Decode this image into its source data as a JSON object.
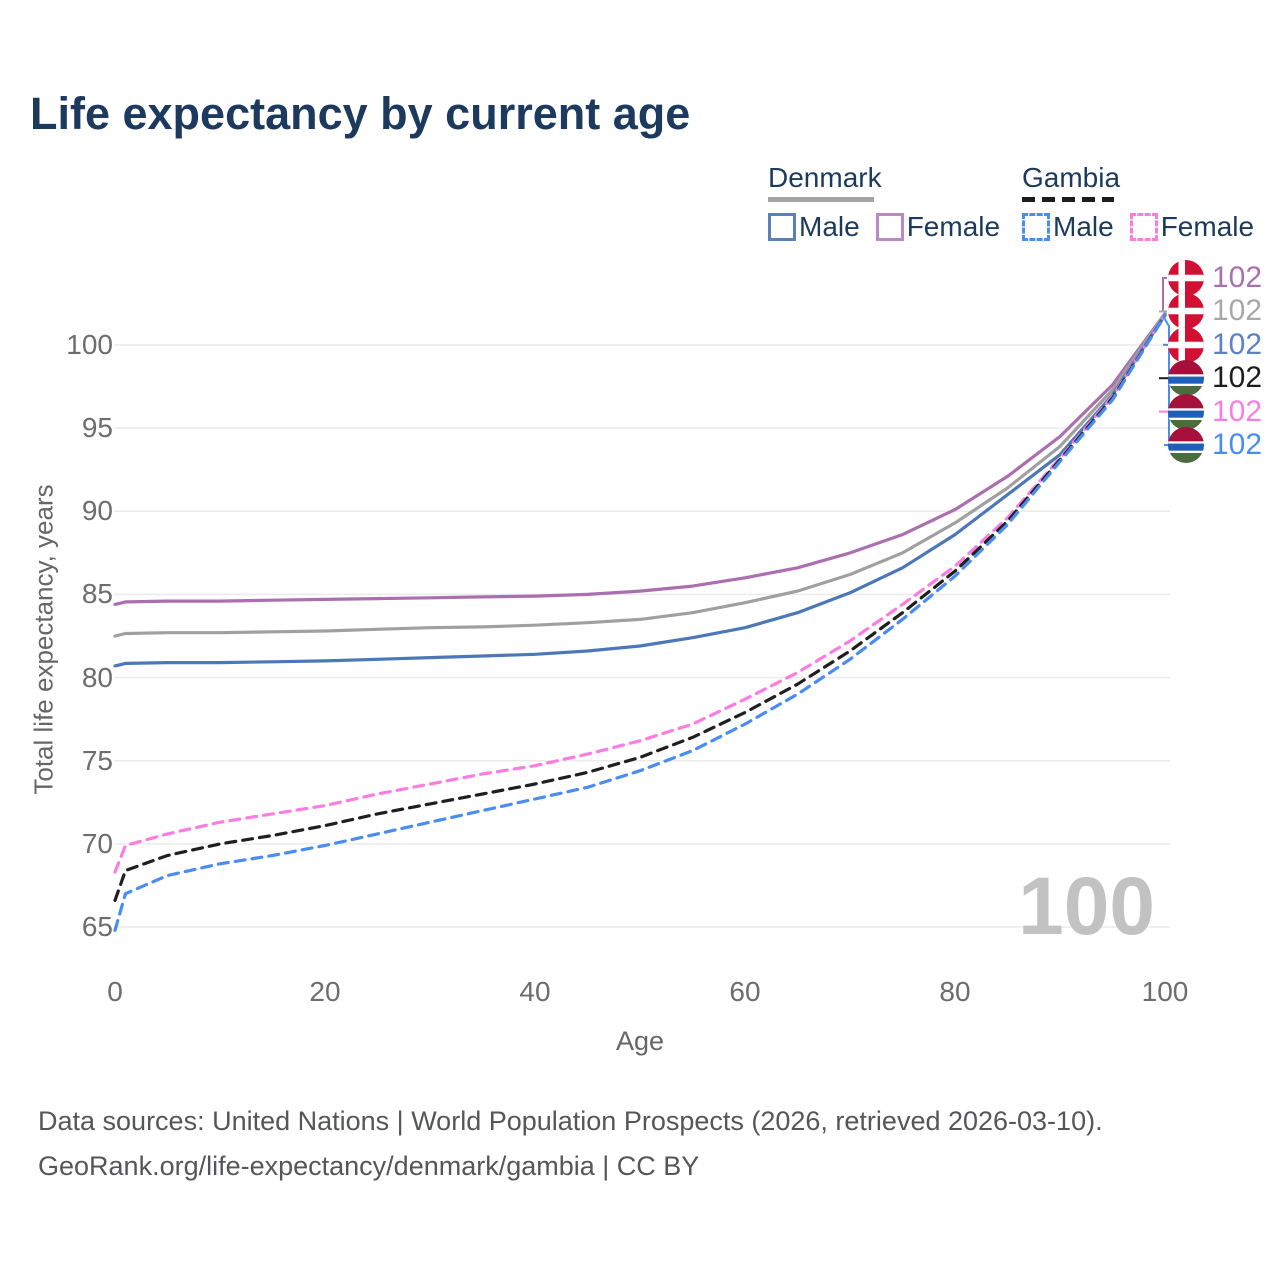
{
  "title": "Life expectancy by current age",
  "legend": {
    "groups": [
      {
        "label": "Denmark",
        "line_style": "solid",
        "underline_color": "#a3a3a3",
        "items": [
          {
            "label": "Male",
            "color": "#4c78b8",
            "dashed": false
          },
          {
            "label": "Female",
            "color": "#bd89c4",
            "dashed": false
          }
        ]
      },
      {
        "label": "Gambia",
        "line_style": "dashed",
        "underline_color": "#1c1c1c",
        "items": [
          {
            "label": "Male",
            "color": "#4a8df2",
            "dashed": true
          },
          {
            "label": "Female",
            "color": "#fc7ce0",
            "dashed": true
          }
        ]
      }
    ]
  },
  "axes": {
    "y_title": "Total life expectancy, years",
    "x_title": "Age",
    "y_ticks": [
      65,
      70,
      75,
      80,
      85,
      90,
      95,
      100
    ],
    "x_ticks": [
      0,
      20,
      40,
      60,
      80,
      100
    ],
    "x_range": [
      0,
      100
    ],
    "y_range": [
      63.5,
      103
    ],
    "grid": "horizontal-only",
    "gridline_color": "#ebebeb"
  },
  "watermark": "100",
  "end_labels": [
    {
      "value": "102",
      "color": "#ab6fb0",
      "flag": "denmark",
      "series": "Denmark Female"
    },
    {
      "value": "102",
      "color": "#a8a8a8",
      "flag": "denmark",
      "series": "Denmark Both sexes"
    },
    {
      "value": "102",
      "color": "#5b82c8",
      "flag": "denmark",
      "series": "Denmark Male"
    },
    {
      "value": "102",
      "color": "#1c1c1c",
      "flag": "gambia",
      "series": "Gambia Both sexes"
    },
    {
      "value": "102",
      "color": "#fb7de2",
      "flag": "gambia",
      "series": "Gambia Female"
    },
    {
      "value": "102",
      "color": "#4a8df2",
      "flag": "gambia",
      "series": "Gambia Male"
    }
  ],
  "flag_colors": {
    "denmark": {
      "red": "#d21033",
      "cross": "#ffffff"
    },
    "gambia": {
      "red": "#a6103a",
      "blue": "#1f5fb8",
      "green": "#4b6c3e",
      "white": "#ffffff"
    }
  },
  "footer": {
    "line1": "Data sources: United Nations | World Population Prospects (2026, retrieved 2026-03-10).",
    "line2": "GeoRank.org/life-expectancy/denmark/gambia | CC BY"
  },
  "chart_data": {
    "type": "line",
    "title": "Life expectancy by current age",
    "xlabel": "Age",
    "ylabel": "Total life expectancy, years",
    "xlim": [
      0,
      100
    ],
    "ylim": [
      63.5,
      103
    ],
    "legend_position": "top-right",
    "x": [
      0,
      1,
      5,
      10,
      15,
      20,
      25,
      30,
      35,
      40,
      45,
      50,
      55,
      60,
      65,
      70,
      75,
      80,
      85,
      90,
      95,
      100
    ],
    "series": [
      {
        "name": "Denmark Female",
        "color": "#ab6fb0",
        "dash": null,
        "values": [
          84.4,
          84.55,
          84.6,
          84.6,
          84.65,
          84.7,
          84.75,
          84.8,
          84.85,
          84.9,
          85.0,
          85.2,
          85.5,
          86.0,
          86.6,
          87.5,
          88.6,
          90.1,
          92.1,
          94.5,
          97.6,
          101.9
        ]
      },
      {
        "name": "Denmark Both sexes",
        "color": "#a0a0a0",
        "dash": null,
        "values": [
          82.5,
          82.65,
          82.7,
          82.7,
          82.75,
          82.8,
          82.9,
          83.0,
          83.05,
          83.15,
          83.3,
          83.5,
          83.9,
          84.5,
          85.2,
          86.2,
          87.5,
          89.3,
          91.4,
          93.9,
          97.3,
          101.9
        ]
      },
      {
        "name": "Denmark Male",
        "color": "#4c78b8",
        "dash": null,
        "values": [
          80.7,
          80.85,
          80.9,
          80.9,
          80.95,
          81.0,
          81.1,
          81.2,
          81.3,
          81.4,
          81.6,
          81.9,
          82.4,
          83.0,
          83.9,
          85.1,
          86.6,
          88.6,
          91.0,
          93.4,
          97.0,
          101.8
        ]
      },
      {
        "name": "Gambia Female",
        "color": "#fb7de2",
        "dash": "10 7",
        "values": [
          68.3,
          69.9,
          70.6,
          71.3,
          71.8,
          72.3,
          73.0,
          73.6,
          74.2,
          74.7,
          75.4,
          76.2,
          77.2,
          78.7,
          80.3,
          82.2,
          84.4,
          86.7,
          89.6,
          93.2,
          96.9,
          101.8
        ]
      },
      {
        "name": "Gambia Both sexes",
        "color": "#1f1f1f",
        "dash": "10 7",
        "values": [
          66.6,
          68.4,
          69.3,
          70.0,
          70.5,
          71.1,
          71.8,
          72.4,
          73.0,
          73.6,
          74.3,
          75.2,
          76.4,
          77.9,
          79.6,
          81.6,
          83.9,
          86.4,
          89.4,
          93.1,
          96.8,
          101.8
        ]
      },
      {
        "name": "Gambia Male",
        "color": "#4a8cf2",
        "dash": "10 7",
        "values": [
          64.8,
          67.0,
          68.1,
          68.8,
          69.3,
          69.9,
          70.6,
          71.3,
          72.0,
          72.7,
          73.4,
          74.4,
          75.6,
          77.2,
          79.0,
          81.1,
          83.5,
          86.1,
          89.2,
          93.0,
          96.7,
          101.8
        ]
      }
    ]
  }
}
